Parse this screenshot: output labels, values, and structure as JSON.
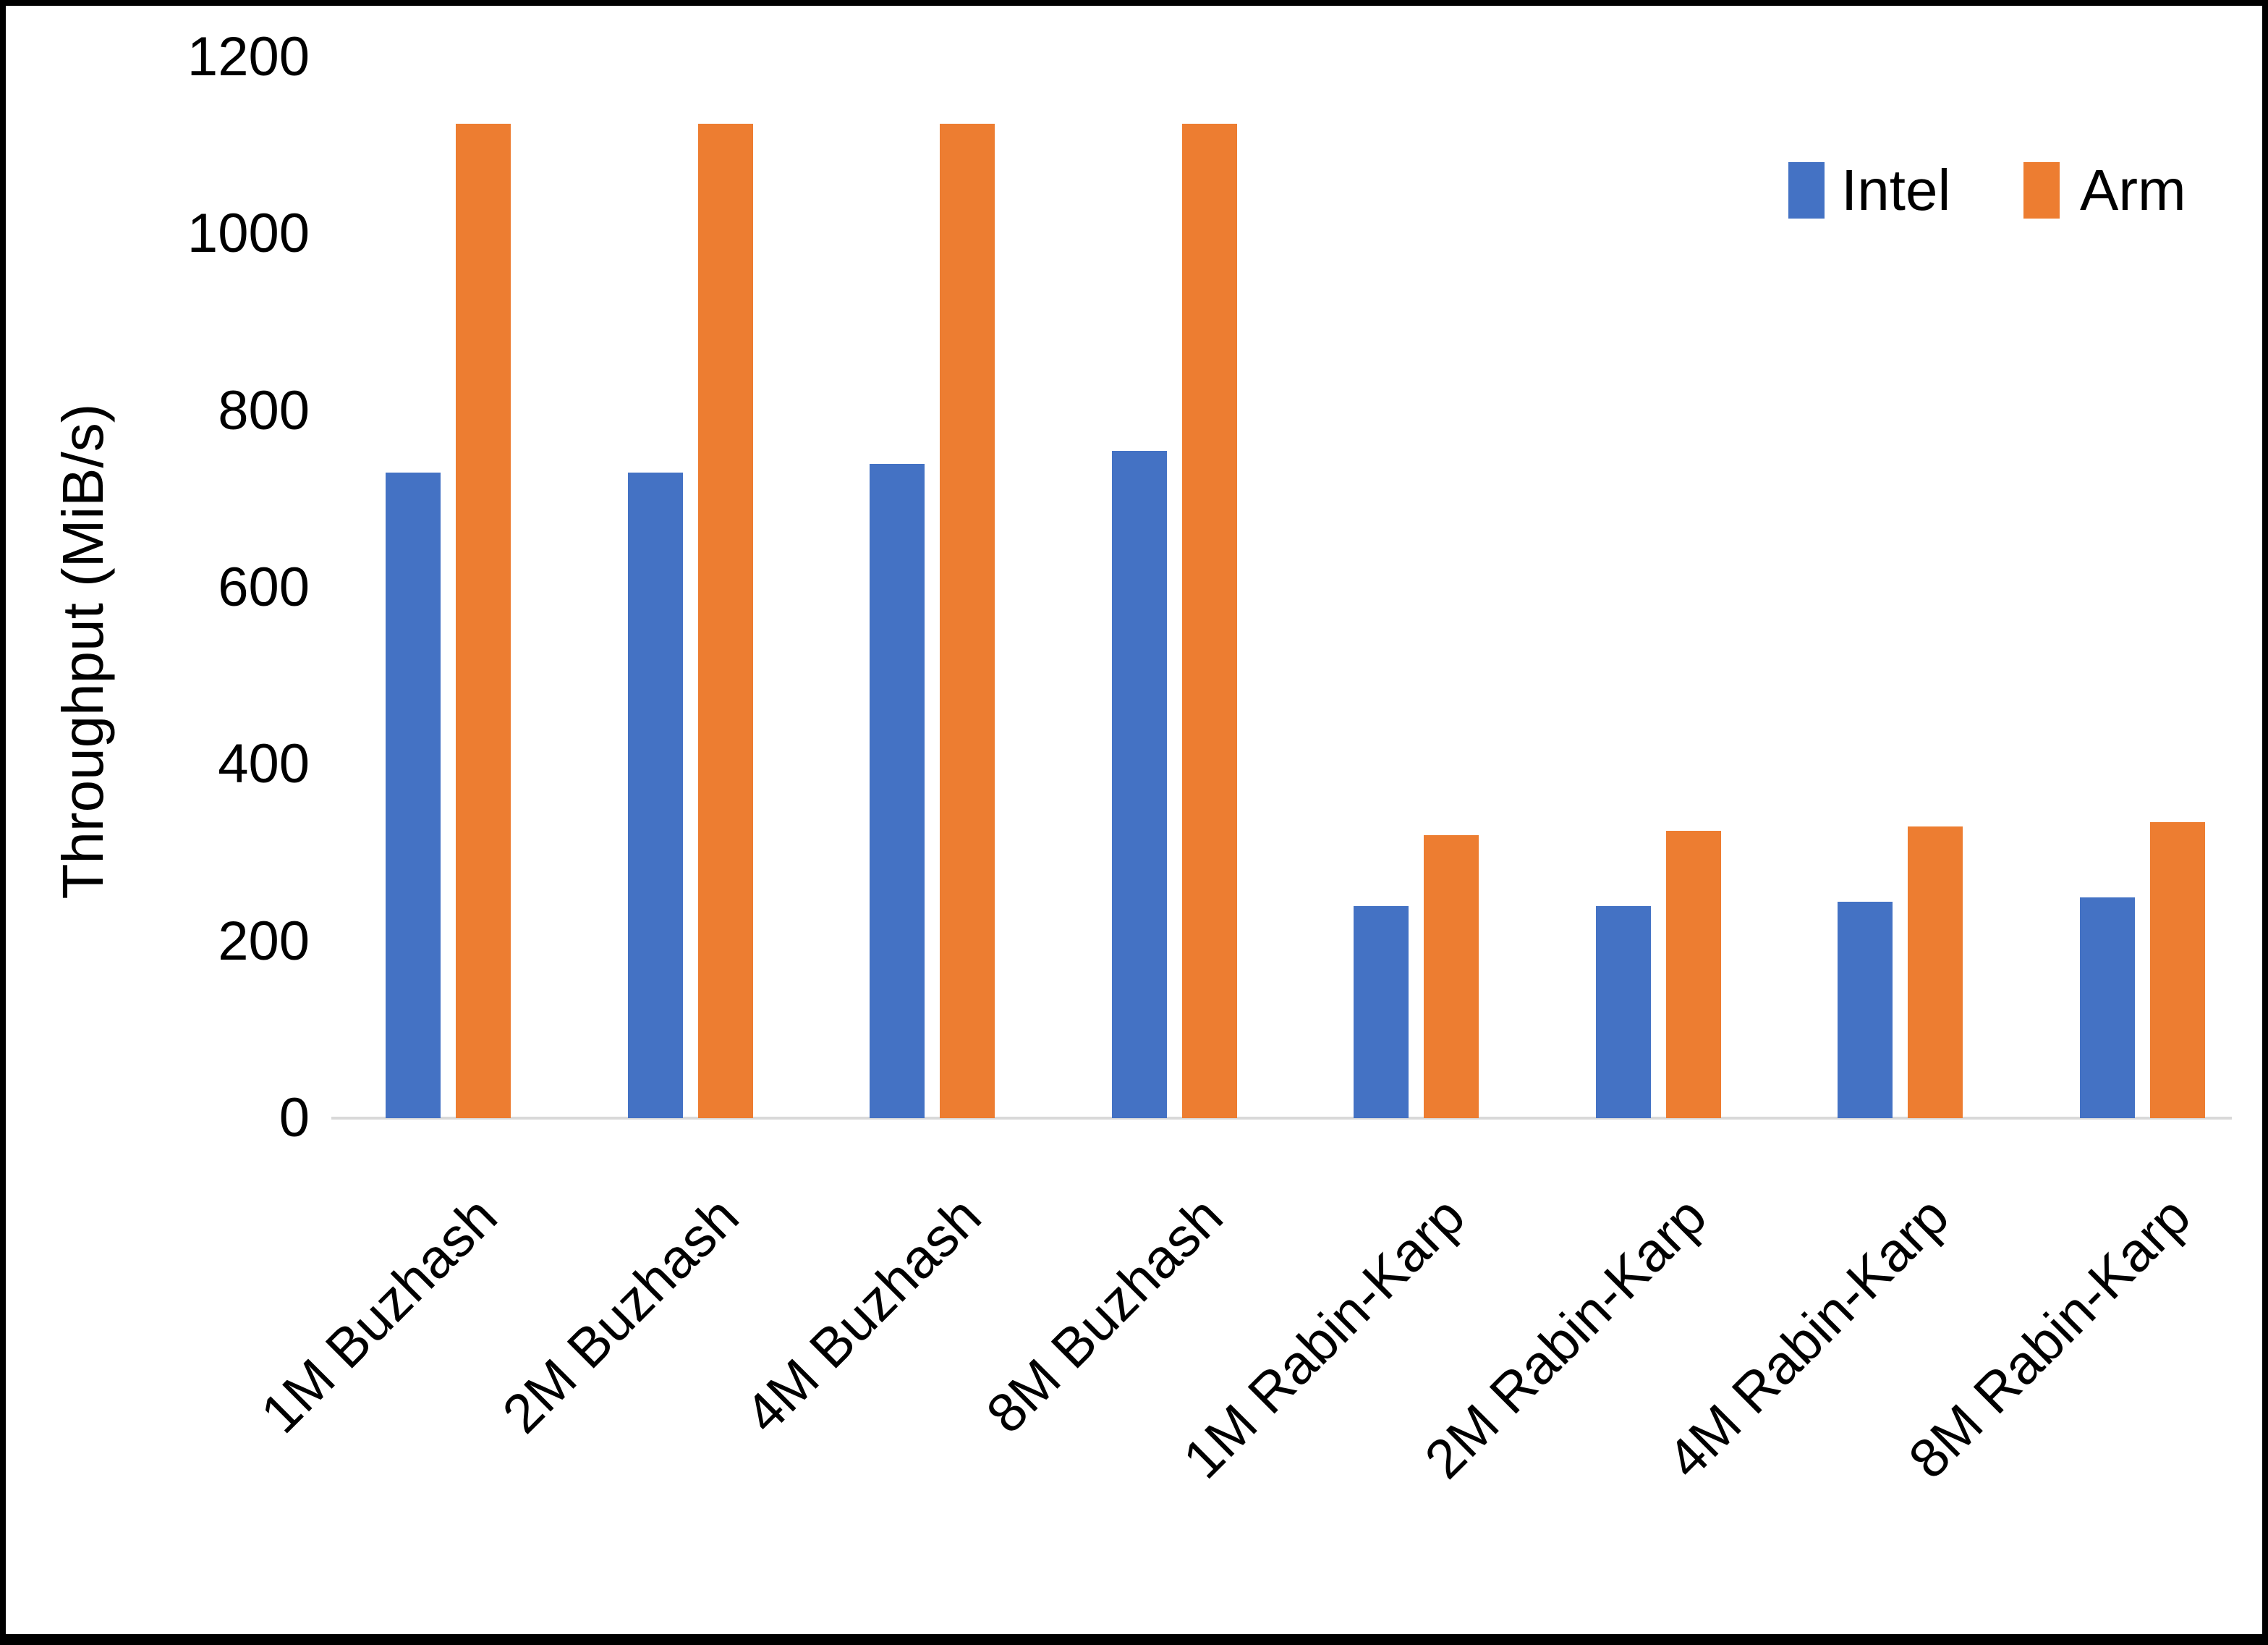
{
  "chart_data": {
    "type": "bar",
    "title": "",
    "categories": [
      "1M Buzhash",
      "2M Buzhash",
      "4M Buzhash",
      "8M Buzhash",
      "1M Rabin-Karp",
      "2M Rabin-Karp",
      "4M Rabin-Karp",
      "8M Rabin-Karp"
    ],
    "series": [
      {
        "name": "Intel",
        "color": "#4472C4",
        "values": [
          730,
          730,
          740,
          755,
          240,
          240,
          245,
          250
        ]
      },
      {
        "name": "Arm",
        "color": "#ED7D31",
        "values": [
          1125,
          1125,
          1125,
          1125,
          320,
          325,
          330,
          335
        ]
      }
    ],
    "xlabel": "",
    "ylabel": "Throughput (MiB/s)",
    "ylim": [
      0,
      1200
    ],
    "ytick_step": 200,
    "yticks": [
      0,
      200,
      400,
      600,
      800,
      1000,
      1200
    ],
    "grid": false,
    "legend_position": "top-right",
    "category_label_rotation_deg": -45
  },
  "colors": {
    "background": "#FFFFFF",
    "frame": "#000000",
    "axis_line": "#D9D9D9",
    "text": "#000000"
  }
}
